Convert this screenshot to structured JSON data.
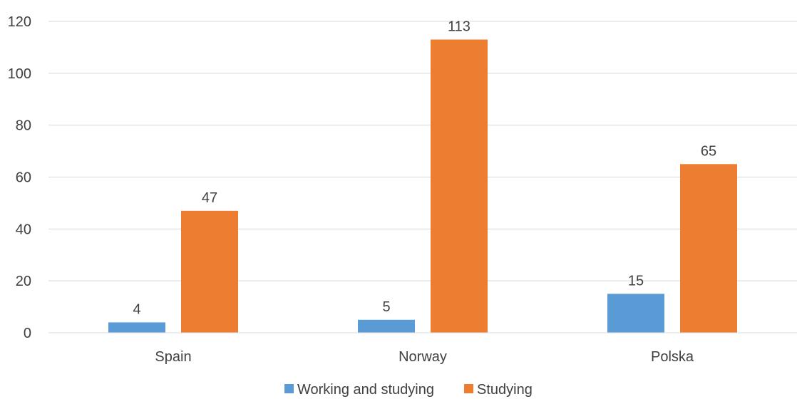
{
  "chart_data": {
    "type": "bar",
    "title": "",
    "xlabel": "",
    "ylabel": "",
    "categories": [
      "Spain",
      "Norway",
      "Polska"
    ],
    "series": [
      {
        "name": "Working and studying",
        "color": "#5B9BD5",
        "values": [
          4,
          5,
          15
        ]
      },
      {
        "name": "Studying",
        "color": "#ED7D31",
        "values": [
          47,
          113,
          65
        ]
      }
    ],
    "ylim": [
      0,
      120
    ],
    "yticks": [
      0,
      20,
      40,
      60,
      80,
      100,
      120
    ],
    "grid": true,
    "data_labels": true,
    "legend_position": "bottom"
  }
}
